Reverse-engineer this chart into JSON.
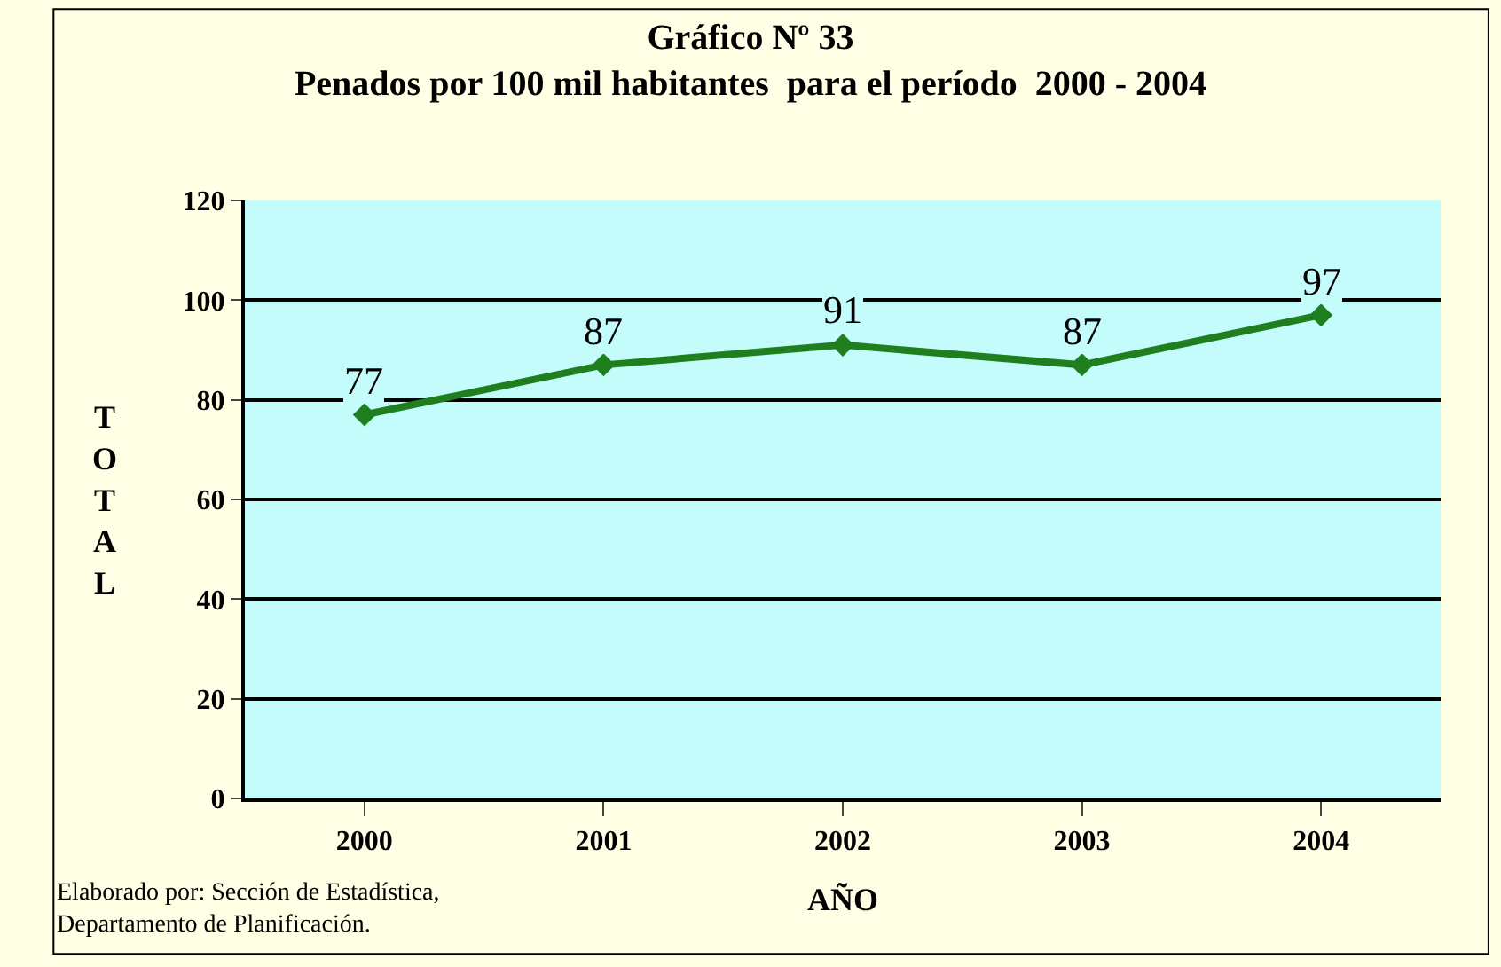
{
  "chart_data": {
    "type": "line",
    "title": "Gráfico Nº 33",
    "subtitle": "Penados por 100 mil habitantes  para el período  2000 - 2004",
    "xlabel": "AÑO",
    "ylabel": "TOTAL",
    "categories": [
      "2000",
      "2001",
      "2002",
      "2003",
      "2004"
    ],
    "series": [
      {
        "color": "#1f7f1f",
        "values": [
          77,
          87,
          91,
          87,
          97
        ]
      }
    ],
    "ylim": [
      0,
      120
    ],
    "yticks": [
      0,
      20,
      40,
      60,
      80,
      100,
      120
    ],
    "grid": "y",
    "legend": false,
    "marker": "diamond",
    "line_style": "solid",
    "data_labels": true,
    "annotations": [
      "Elaborado por: Sección de Estadística, Departamento de Planificación."
    ]
  }
}
